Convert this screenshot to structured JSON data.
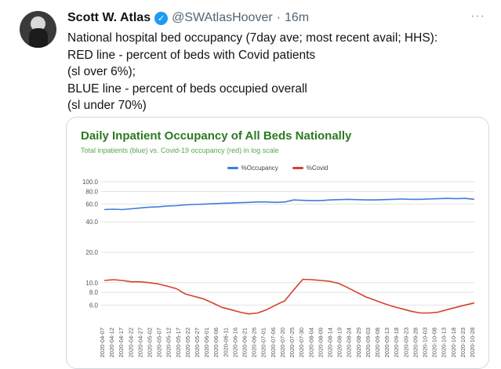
{
  "tweet": {
    "author_name": "Scott W. Atlas",
    "handle": "@SWAtlasHoover",
    "separator": "·",
    "time": "16m",
    "more": "···",
    "verified_mark": "✓",
    "text_lines": [
      "National hospital bed occupancy (7day ave; most recent avail; HHS):",
      "RED line - percent of beds with Covid patients",
      "(sl over 6%);",
      "BLUE line - percent of beds occupied overall",
      "(sl under 70%)"
    ]
  },
  "colors": {
    "title": "#2b7a21",
    "subtitle": "#5aa650",
    "occupancy": "#3d7fd6",
    "covid": "#d6402b",
    "grid": "#e3e3e3",
    "verified": "#1d9bf0"
  },
  "chart_data": {
    "type": "line",
    "title": "Daily Inpatient Occupancy of All Beds Nationally",
    "subtitle": "Total inpatients (blue) vs. Covid-19 occupancy (red) in log scale",
    "yscale": "log",
    "ylim": [
      4.0,
      100.0
    ],
    "y_ticks": [
      {
        "value": 100,
        "label": "100.0"
      },
      {
        "value": 80,
        "label": "80.0"
      },
      {
        "value": 60,
        "label": "60.0"
      },
      {
        "value": 40,
        "label": "40.0"
      },
      {
        "value": 20,
        "label": "20.0"
      },
      {
        "value": 10,
        "label": "10.0"
      },
      {
        "value": 8,
        "label": "8.0"
      },
      {
        "value": 6,
        "label": "6.0"
      }
    ],
    "legend_position": "top-center",
    "grid": true,
    "x": [
      "2020-04-07",
      "2020-04-12",
      "2020-04-17",
      "2020-04-22",
      "2020-04-27",
      "2020-05-02",
      "2020-05-07",
      "2020-05-12",
      "2020-05-17",
      "2020-05-22",
      "2020-05-27",
      "2020-06-01",
      "2020-06-06",
      "2020-06-11",
      "2020-06-16",
      "2020-06-21",
      "2020-06-26",
      "2020-07-01",
      "2020-07-06",
      "2020-07-11",
      "2020-07-16",
      "2020-07-21",
      "2020-07-26",
      "2020-07-31",
      "2020-08-05",
      "2020-08-10",
      "2020-08-15",
      "2020-08-20",
      "2020-08-25",
      "2020-08-30",
      "2020-09-04",
      "2020-09-09",
      "2020-09-14",
      "2020-09-19",
      "2020-09-24",
      "2020-09-29",
      "2020-10-04",
      "2020-10-09",
      "2020-10-14",
      "2020-10-19",
      "2020-10-24",
      "2020-10-28"
    ],
    "x_tick_labels": [
      "2020-04-07",
      "2020-04-12",
      "2020-04-17",
      "2020-04-22",
      "2020-04-27",
      "2020-05-02",
      "2020-05-07",
      "2020-05-12",
      "2020-05-17",
      "2020-05-22",
      "2020-05-27",
      "2020-06-01",
      "2020-06-06",
      "2020-06-11",
      "2020-06-16",
      "2020-06-21",
      "2020-06-26",
      "2020-07-01",
      "2020-07-06",
      "2020-07-20",
      "2020-07-25",
      "2020-07-30",
      "2020-08-04",
      "2020-08-09",
      "2020-08-14",
      "2020-08-19",
      "2020-08-24",
      "2020-08-29",
      "2020-09-03",
      "2020-09-08",
      "2020-09-13",
      "2020-09-18",
      "2020-09-23",
      "2020-09-28",
      "2020-10-03",
      "2020-10-08",
      "2020-10-13",
      "2020-10-18",
      "2020-10-23",
      "2020-10-28"
    ],
    "series": [
      {
        "name": "%Occupancy",
        "color": "#3d7fd6",
        "values": [
          53,
          53.5,
          53,
          54,
          55,
          56,
          56.5,
          57.5,
          58,
          59,
          59.5,
          60,
          60.5,
          61,
          61.5,
          62,
          62.5,
          63,
          63,
          62.5,
          63,
          66,
          65.5,
          65,
          65,
          66,
          66.5,
          67,
          66.5,
          66,
          66,
          66.5,
          67,
          67.5,
          67,
          67,
          67.5,
          68,
          68.5,
          68,
          68.5,
          67
        ]
      },
      {
        "name": "%Covid",
        "color": "#d6402b",
        "values": [
          10.5,
          10.7,
          10.5,
          10.2,
          10.2,
          10,
          9.7,
          9.2,
          8.7,
          7.7,
          7.3,
          6.9,
          6.3,
          5.7,
          5.4,
          5.1,
          4.9,
          5.0,
          5.4,
          6.0,
          6.6,
          8.5,
          10.8,
          10.7,
          10.5,
          10.3,
          9.8,
          8.9,
          8.0,
          7.2,
          6.7,
          6.2,
          5.8,
          5.5,
          5.2,
          5.0,
          5.0,
          5.1,
          5.4,
          5.7,
          6.0,
          6.3
        ]
      }
    ]
  }
}
